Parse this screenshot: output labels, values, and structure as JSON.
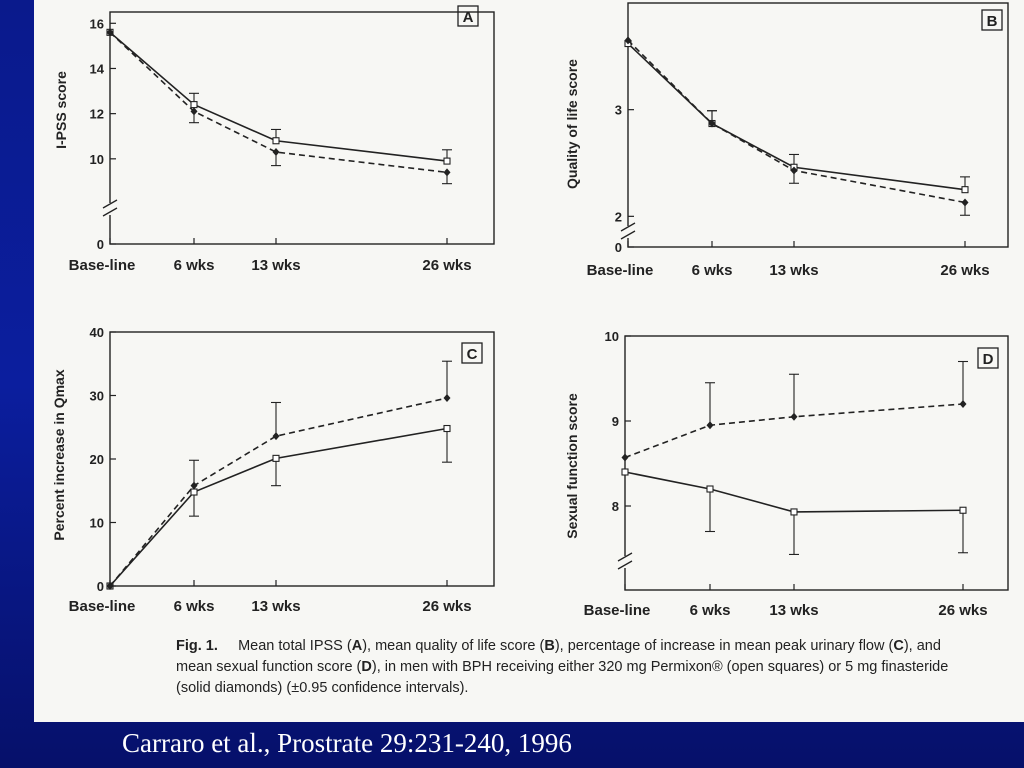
{
  "citation": "Carraro et al., Prostrate 29:231-240, 1996",
  "caption": {
    "fig_label": "Fig. 1.",
    "segments": [
      {
        "text": "Mean total IPSS (",
        "bold": false
      },
      {
        "text": "A",
        "bold": true
      },
      {
        "text": "), mean quality of life score (",
        "bold": false
      },
      {
        "text": "B",
        "bold": true
      },
      {
        "text": "), percentage of increase in mean peak urinary flow (",
        "bold": false
      },
      {
        "text": "C",
        "bold": true
      },
      {
        "text": "), and mean sexual function score (",
        "bold": false
      },
      {
        "text": "D",
        "bold": true
      },
      {
        "text": "), in men with BPH receiving either 320 mg Permixon® (open squares) or 5 mg finasteride (solid diamonds) (±0.95 confidence intervals).",
        "bold": false
      }
    ]
  },
  "colors": {
    "line": "#222222",
    "paper": "#f7f7f4",
    "background": "#0b1e9e",
    "citation": "#ffffff"
  },
  "chart_data": [
    {
      "panel": "A",
      "type": "line",
      "title": "",
      "ylabel": "I-PSS score",
      "xlabel": "",
      "categories": [
        "Base-line",
        "6 wks",
        "13 wks",
        "26 wks"
      ],
      "yticks": [
        0,
        10,
        12,
        14,
        16
      ],
      "ylim": [
        8,
        16.5
      ],
      "axis_break": true,
      "grid": false,
      "series": [
        {
          "marker": "square",
          "line": "solid",
          "values": [
            15.6,
            12.4,
            10.8,
            9.9
          ],
          "ci": [
            null,
            0.5,
            0.5,
            0.5
          ]
        },
        {
          "marker": "diamond",
          "line": "dashed",
          "values": [
            15.6,
            12.1,
            10.3,
            9.4
          ],
          "ci": [
            null,
            0.5,
            0.6,
            0.5
          ]
        }
      ]
    },
    {
      "panel": "B",
      "type": "line",
      "title": "",
      "ylabel": "Quality of life score",
      "xlabel": "",
      "categories": [
        "Base-line",
        "6 wks",
        "13 wks",
        "26 wks"
      ],
      "yticks": [
        0,
        2,
        3
      ],
      "ylim": [
        1.9,
        4
      ],
      "axis_break": true,
      "grid": false,
      "series": [
        {
          "marker": "square",
          "line": "solid",
          "values": [
            3.62,
            2.87,
            2.46,
            2.25
          ],
          "ci": [
            null,
            0.12,
            0.12,
            0.12
          ]
        },
        {
          "marker": "diamond",
          "line": "dashed",
          "values": [
            3.65,
            2.87,
            2.43,
            2.13
          ],
          "ci": [
            null,
            0.12,
            0.12,
            0.12
          ]
        }
      ]
    },
    {
      "panel": "C",
      "type": "line",
      "title": "",
      "ylabel": "Percent increase in Qmax",
      "xlabel": "",
      "categories": [
        "Base-line",
        "6 wks",
        "13 wks",
        "26 wks"
      ],
      "yticks": [
        0,
        10,
        20,
        30,
        40
      ],
      "ylim": [
        0,
        40
      ],
      "axis_break": false,
      "grid": false,
      "series": [
        {
          "marker": "square",
          "line": "solid",
          "values": [
            0,
            14.8,
            20.1,
            24.8
          ],
          "ci": [
            null,
            3.8,
            4.3,
            5.3
          ]
        },
        {
          "marker": "diamond",
          "line": "dashed",
          "values": [
            0,
            15.8,
            23.6,
            29.6
          ],
          "ci": [
            null,
            4.0,
            5.3,
            5.8
          ]
        }
      ]
    },
    {
      "panel": "D",
      "type": "line",
      "title": "",
      "ylabel": "Sexual function score",
      "xlabel": "",
      "categories": [
        "Base-line",
        "6 wks",
        "13 wks",
        "26 wks"
      ],
      "yticks": [
        8,
        9,
        10
      ],
      "ylim": [
        7.4,
        10
      ],
      "axis_break": true,
      "grid": false,
      "series": [
        {
          "marker": "square",
          "line": "solid",
          "values": [
            8.4,
            8.2,
            7.93,
            7.95
          ],
          "ci": [
            null,
            0.5,
            0.5,
            0.5
          ]
        },
        {
          "marker": "diamond",
          "line": "dashed",
          "values": [
            8.57,
            8.95,
            9.05,
            9.2
          ],
          "ci": [
            null,
            0.5,
            0.5,
            0.5
          ]
        }
      ]
    }
  ]
}
